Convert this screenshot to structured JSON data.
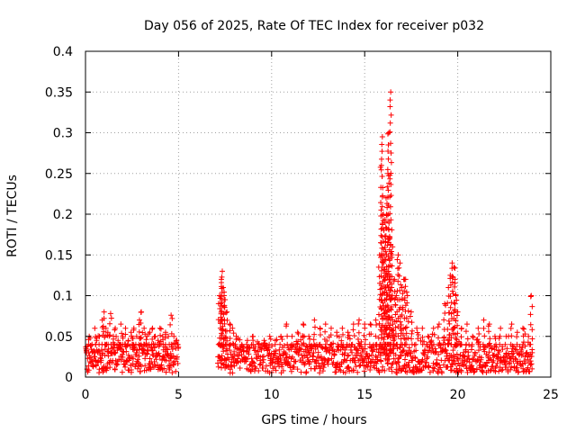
{
  "chart_data": {
    "type": "scatter",
    "title": "Day 056 of 2025, Rate Of TEC Index for receiver p032",
    "xlabel": "GPS time / hours",
    "ylabel": "ROTI / TECUs",
    "xlim": [
      0,
      25
    ],
    "ylim": [
      0,
      0.4
    ],
    "xticks": [
      0,
      5,
      10,
      15,
      20,
      25
    ],
    "xtick_labels": [
      "0",
      "5",
      "10",
      "15",
      "20",
      "25"
    ],
    "yticks": [
      0,
      0.05,
      0.1,
      0.15,
      0.2,
      0.25,
      0.3,
      0.35,
      0.4
    ],
    "ytick_labels": [
      "0",
      "0.05",
      "0.1",
      "0.15",
      "0.2",
      "0.25",
      "0.3",
      "0.35",
      "0.4"
    ],
    "grid": true,
    "marker": "+",
    "color": "#ff0000",
    "data_gap_hours": [
      5.0,
      7.1
    ],
    "series": [
      {
        "name": "ROTI",
        "x": [
          0.05,
          0.2,
          0.35,
          0.5,
          0.6,
          0.75,
          0.9,
          1.0,
          1.1,
          1.2,
          1.35,
          1.5,
          1.6,
          1.75,
          1.9,
          2.0,
          2.15,
          2.3,
          2.45,
          2.6,
          2.75,
          2.9,
          3.0,
          3.15,
          3.3,
          3.45,
          3.6,
          3.75,
          3.9,
          4.0,
          4.15,
          4.3,
          4.45,
          4.6,
          4.75,
          4.9,
          7.2,
          7.25,
          7.3,
          7.35,
          7.4,
          7.45,
          7.5,
          7.6,
          7.75,
          7.9,
          8.1,
          8.4,
          8.7,
          9.0,
          9.3,
          9.6,
          9.9,
          10.2,
          10.5,
          10.8,
          11.1,
          11.4,
          11.7,
          12.0,
          12.3,
          12.6,
          12.9,
          13.2,
          13.5,
          13.8,
          14.1,
          14.4,
          14.7,
          15.0,
          15.3,
          15.6,
          15.8,
          15.9,
          15.95,
          16.0,
          16.05,
          16.1,
          16.15,
          16.2,
          16.25,
          16.3,
          16.35,
          16.4,
          16.45,
          16.5,
          16.6,
          16.7,
          16.8,
          16.9,
          17.0,
          17.1,
          17.2,
          17.3,
          17.5,
          17.8,
          18.1,
          18.4,
          18.7,
          19.0,
          19.3,
          19.5,
          19.6,
          19.7,
          19.8,
          19.85,
          19.9,
          20.0,
          20.2,
          20.5,
          20.8,
          21.1,
          21.4,
          21.7,
          22.0,
          22.3,
          22.6,
          22.9,
          23.2,
          23.5,
          23.8,
          23.95,
          24.0
        ],
        "y": [
          0.03,
          0.05,
          0.04,
          0.06,
          0.045,
          0.05,
          0.07,
          0.08,
          0.06,
          0.055,
          0.078,
          0.05,
          0.06,
          0.045,
          0.065,
          0.05,
          0.06,
          0.045,
          0.055,
          0.06,
          0.05,
          0.07,
          0.08,
          0.06,
          0.05,
          0.055,
          0.06,
          0.05,
          0.045,
          0.06,
          0.05,
          0.055,
          0.05,
          0.076,
          0.05,
          0.045,
          0.1,
          0.09,
          0.12,
          0.13,
          0.11,
          0.1,
          0.095,
          0.08,
          0.065,
          0.06,
          0.05,
          0.04,
          0.045,
          0.05,
          0.04,
          0.045,
          0.05,
          0.045,
          0.05,
          0.065,
          0.05,
          0.055,
          0.065,
          0.05,
          0.07,
          0.06,
          0.065,
          0.06,
          0.055,
          0.06,
          0.055,
          0.065,
          0.07,
          0.065,
          0.065,
          0.07,
          0.15,
          0.26,
          0.295,
          0.2,
          0.15,
          0.19,
          0.22,
          0.13,
          0.25,
          0.3,
          0.17,
          0.35,
          0.11,
          0.16,
          0.12,
          0.1,
          0.15,
          0.14,
          0.11,
          0.12,
          0.12,
          0.1,
          0.08,
          0.06,
          0.06,
          0.05,
          0.06,
          0.065,
          0.09,
          0.11,
          0.125,
          0.14,
          0.135,
          0.12,
          0.1,
          0.08,
          0.06,
          0.065,
          0.05,
          0.06,
          0.07,
          0.065,
          0.05,
          0.06,
          0.05,
          0.065,
          0.055,
          0.06,
          0.05,
          0.1,
          0.03
        ],
        "baseline_band": [
          0.005,
          0.04
        ]
      }
    ]
  }
}
